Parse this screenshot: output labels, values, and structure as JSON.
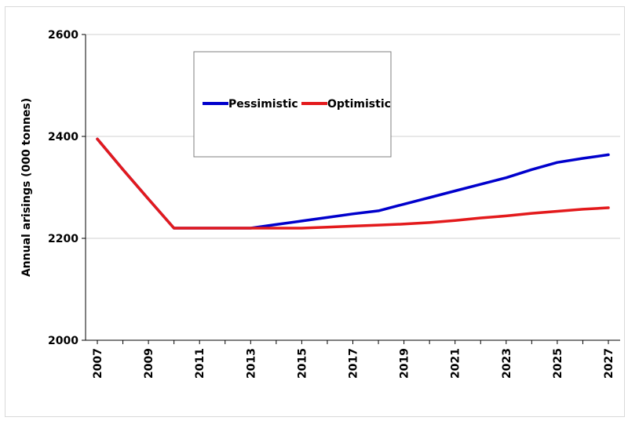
{
  "chart_data": {
    "type": "line",
    "title": "",
    "xlabel": "",
    "ylabel": "Annual arisings (000 tonnes)",
    "x": [
      2007,
      2008,
      2009,
      2010,
      2011,
      2012,
      2013,
      2014,
      2015,
      2016,
      2017,
      2018,
      2019,
      2020,
      2021,
      2022,
      2023,
      2024,
      2025,
      2026,
      2027
    ],
    "x_tick_labels": [
      "2007",
      "2009",
      "2011",
      "2013",
      "2015",
      "2017",
      "2019",
      "2021",
      "2023",
      "2025",
      "2027"
    ],
    "ylim": [
      2000,
      2600
    ],
    "y_ticks": [
      2000,
      2200,
      2400,
      2600
    ],
    "y_tick_labels": [
      "2000",
      "2200",
      "2400",
      "2600"
    ],
    "grid": true,
    "legend_position": "top-left",
    "series": [
      {
        "name": "Pessimistic",
        "color": "#0000cc",
        "values": [
          2395,
          2335,
          2277,
          2220,
          2220,
          2220,
          2220,
          2227,
          2234,
          2241,
          2248,
          2254,
          2267,
          2280,
          2293,
          2306,
          2319,
          2335,
          2349,
          2357,
          2364
        ]
      },
      {
        "name": "Optimistic",
        "color": "#e31a1c",
        "values": [
          2395,
          2335,
          2277,
          2220,
          2220,
          2220,
          2220,
          2220,
          2220,
          2222,
          2224,
          2226,
          2228,
          2231,
          2235,
          2240,
          2244,
          2249,
          2253,
          2257,
          2260
        ]
      }
    ]
  }
}
